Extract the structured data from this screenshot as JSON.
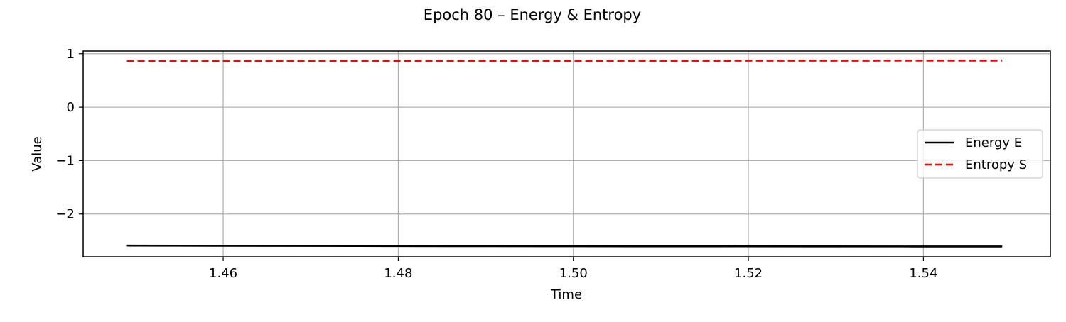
{
  "chart_data": {
    "type": "line",
    "title": "Epoch 80 – Energy & Entropy",
    "xlabel": "Time",
    "ylabel": "Value",
    "xlim": [
      1.444,
      1.5545
    ],
    "ylim": [
      -2.8,
      1.05
    ],
    "xticks": [
      1.46,
      1.48,
      1.5,
      1.52,
      1.54
    ],
    "xtick_labels": [
      "1.46",
      "1.48",
      "1.50",
      "1.52",
      "1.54"
    ],
    "yticks": [
      1,
      0,
      -1,
      -2
    ],
    "ytick_labels": [
      "1",
      "0",
      "−1",
      "−2"
    ],
    "grid": true,
    "legend_position": "center-right",
    "series": [
      {
        "name": "Energy E",
        "color": "#000000",
        "style": "solid",
        "x": [
          1.449,
          1.459,
          1.469,
          1.479,
          1.489,
          1.499,
          1.509,
          1.519,
          1.529,
          1.539,
          1.549
        ],
        "y": [
          -2.59,
          -2.593,
          -2.596,
          -2.598,
          -2.6,
          -2.602,
          -2.603,
          -2.604,
          -2.605,
          -2.606,
          -2.607
        ]
      },
      {
        "name": "Entropy S",
        "color": "#ff0000",
        "style": "dashed",
        "x": [
          1.449,
          1.459,
          1.469,
          1.479,
          1.489,
          1.499,
          1.509,
          1.519,
          1.529,
          1.539,
          1.549
        ],
        "y": [
          0.862,
          0.863,
          0.864,
          0.865,
          0.866,
          0.867,
          0.868,
          0.869,
          0.87,
          0.871,
          0.872
        ]
      }
    ]
  }
}
